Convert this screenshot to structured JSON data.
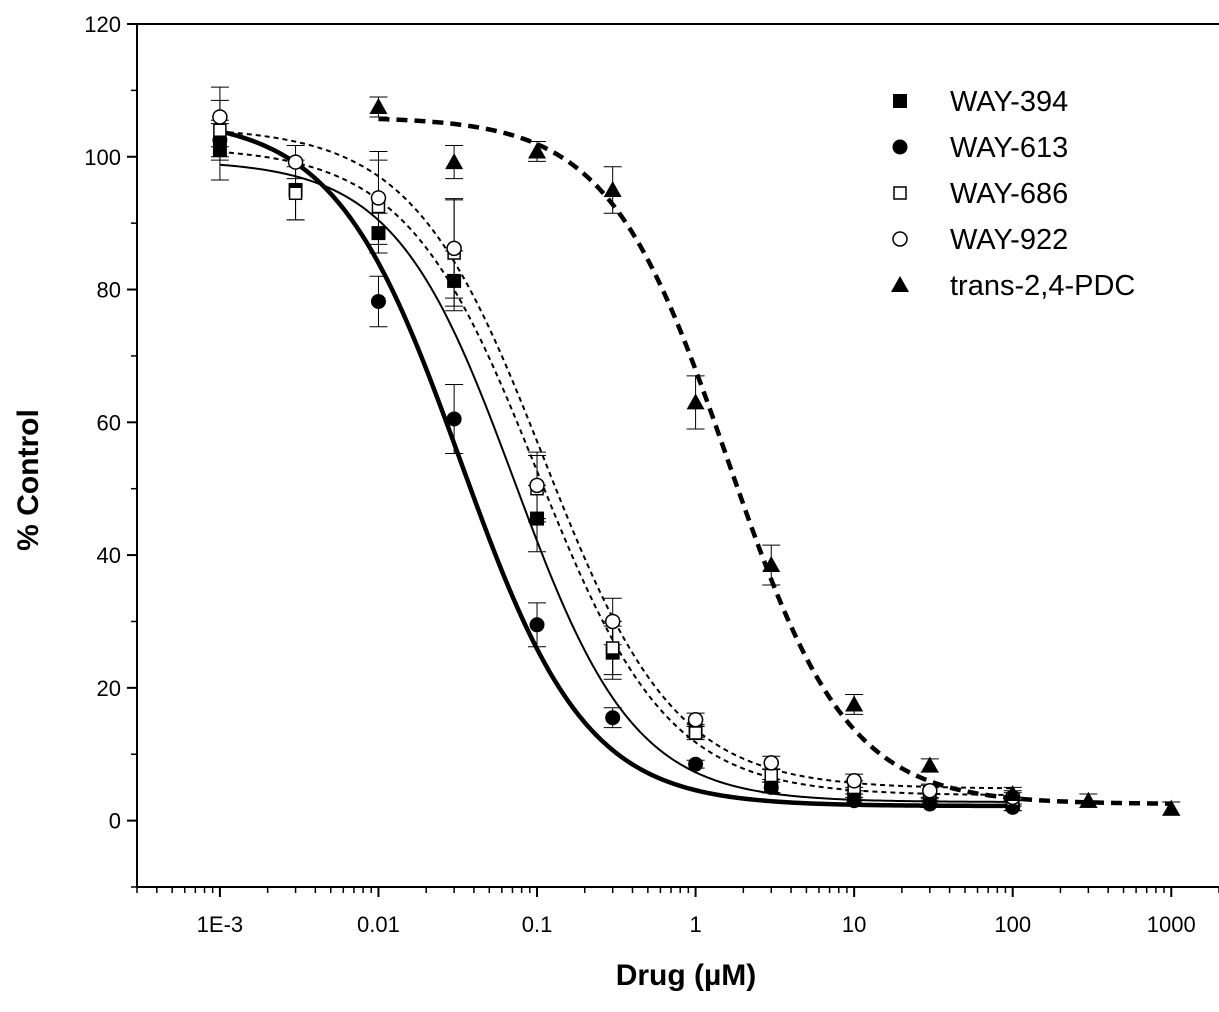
{
  "chart_data": {
    "type": "scatter",
    "xlabel": "Drug (µM)",
    "ylabel": "% Control",
    "x_scale": "log",
    "xlim": [
      0.0003,
      2000
    ],
    "ylim": [
      -10,
      120
    ],
    "x_ticks": [
      0.001,
      0.01,
      0.1,
      1,
      10,
      100,
      1000
    ],
    "x_tick_labels": [
      "1E-3",
      "0.01",
      "0.1",
      "1",
      "10",
      "100",
      "1000"
    ],
    "y_ticks": [
      0,
      20,
      40,
      60,
      80,
      100,
      120
    ],
    "y_tick_labels": [
      "0",
      "20",
      "40",
      "60",
      "80",
      "100",
      "120"
    ],
    "grid": false,
    "legend_position": "top-right",
    "series": [
      {
        "name": "WAY-394",
        "marker": "square-filled",
        "x": [
          0.001,
          0.003,
          0.01,
          0.03,
          0.1,
          0.3,
          1,
          3,
          10,
          30,
          100
        ],
        "y": [
          101,
          95,
          88.5,
          81.3,
          45.5,
          25.3,
          13.5,
          5.2,
          3.5,
          3,
          2.5
        ],
        "err": [
          4.5,
          4.5,
          3,
          4.5,
          5,
          4,
          1,
          1,
          1,
          1,
          1
        ],
        "fit": {
          "bottom": 2.8,
          "top": 99.5,
          "ec50": 0.072,
          "hill": 1.15,
          "style": "solid-thin"
        }
      },
      {
        "name": "WAY-613",
        "marker": "circle-filled",
        "x": [
          0.001,
          0.01,
          0.03,
          0.1,
          0.3,
          1,
          3,
          10,
          30,
          100
        ],
        "y": [
          102.5,
          78.2,
          60.5,
          29.5,
          15.5,
          8.5,
          5,
          3,
          2.5,
          2
        ],
        "err": [
          2.5,
          3.8,
          5.2,
          3.3,
          1.5,
          0.6,
          0.8,
          0.5,
          0.5,
          0.5
        ],
        "fit": {
          "bottom": 2.2,
          "top": 106,
          "ec50": 0.033,
          "hill": 1.1,
          "style": "solid-thick"
        }
      },
      {
        "name": "WAY-686",
        "marker": "square-open",
        "x": [
          0.001,
          0.003,
          0.01,
          0.03,
          0.1,
          0.3,
          1,
          3,
          10,
          30,
          100
        ],
        "y": [
          104,
          94.5,
          92.5,
          85.5,
          50,
          26,
          13.2,
          6.8,
          5,
          4.3,
          3.2
        ],
        "err": [
          4.5,
          4,
          7,
          8,
          5,
          4,
          1,
          1,
          1,
          1,
          1
        ],
        "fit": {
          "bottom": 3.8,
          "top": 101.5,
          "ec50": 0.1,
          "hill": 1.05,
          "style": "dashed-thin"
        }
      },
      {
        "name": "WAY-922",
        "marker": "circle-open",
        "x": [
          0.001,
          0.003,
          0.01,
          0.03,
          0.1,
          0.3,
          1,
          3,
          10,
          30,
          100
        ],
        "y": [
          106,
          99.2,
          93.8,
          86.2,
          50.5,
          30,
          15.2,
          8.7,
          6,
          4.5,
          3.5
        ],
        "err": [
          4.5,
          2.5,
          7,
          7.5,
          5,
          3.5,
          1,
          1,
          1,
          1,
          1
        ],
        "fit": {
          "bottom": 4.8,
          "top": 104.5,
          "ec50": 0.11,
          "hill": 1.05,
          "style": "dashed-thin"
        }
      },
      {
        "name": "trans-2,4-PDC",
        "marker": "triangle-filled",
        "x": [
          0.01,
          0.03,
          0.1,
          0.3,
          1,
          3,
          10,
          30,
          100,
          300,
          1000
        ],
        "y": [
          107.5,
          99.2,
          100.8,
          95,
          63,
          38.5,
          17.5,
          8.3,
          4,
          3,
          1.8
        ],
        "err": [
          1.5,
          2.5,
          1.5,
          3.5,
          4,
          3,
          1.5,
          1,
          1,
          1,
          1
        ],
        "fit": {
          "bottom": 2.5,
          "top": 106,
          "ec50": 1.6,
          "hill": 1.15,
          "style": "dashed-thick",
          "x_from": 0.01
        }
      }
    ]
  }
}
